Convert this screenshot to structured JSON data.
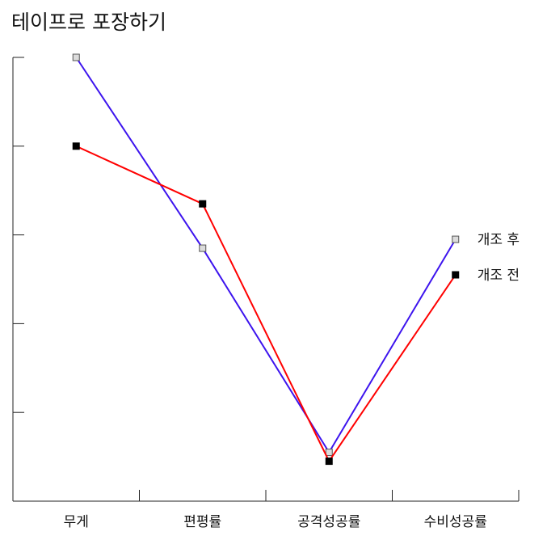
{
  "chart_data": {
    "type": "line",
    "title": "테이프로 포장하기",
    "categories": [
      "무게",
      "편평률",
      "공격성공률",
      "수비성공률"
    ],
    "ylim": [
      0,
      5
    ],
    "yticks": [
      0,
      1,
      2,
      3,
      4,
      5
    ],
    "grid": false,
    "legend_position": "right",
    "series": [
      {
        "name": "개조 후",
        "color": "#3d14ee",
        "marker_fill": "#dcdcdc",
        "values": [
          5.0,
          2.85,
          0.55,
          2.95
        ]
      },
      {
        "name": "개조 전",
        "color": "#ff0000",
        "marker_fill": "#000000",
        "values": [
          4.0,
          3.35,
          0.45,
          2.55
        ]
      }
    ]
  }
}
